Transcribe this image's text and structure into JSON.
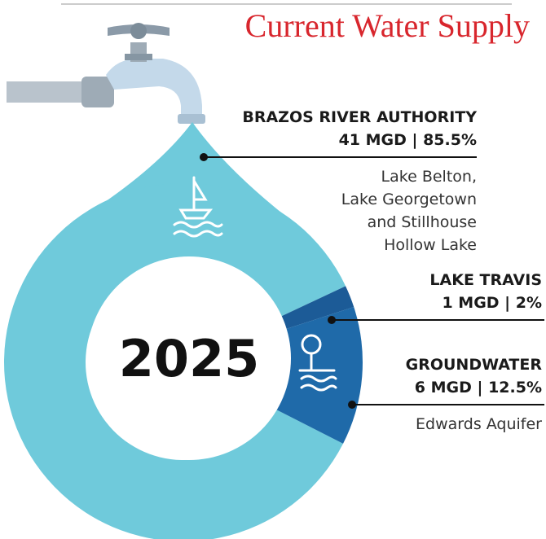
{
  "title": "Current Water Supply",
  "chart_data": {
    "type": "pie",
    "center_label": "2025",
    "categories": [
      "BRAZOS RIVER AUTHORITY",
      "LAKE TRAVIS",
      "GROUNDWATER"
    ],
    "values": [
      85.5,
      2,
      12.5
    ],
    "value_labels": [
      "41 MGD | 85.5%",
      "1 MGD | 2%",
      "6 MGD | 12.5%"
    ],
    "colors": [
      "#6fcadb",
      "#1c5b97",
      "#1f6aa9"
    ],
    "notes": [
      [
        "Lake Belton,",
        "Lake Georgetown",
        "and Stillhouse",
        "Hollow Lake"
      ],
      null,
      [
        "Edwards Aquifer"
      ]
    ]
  }
}
